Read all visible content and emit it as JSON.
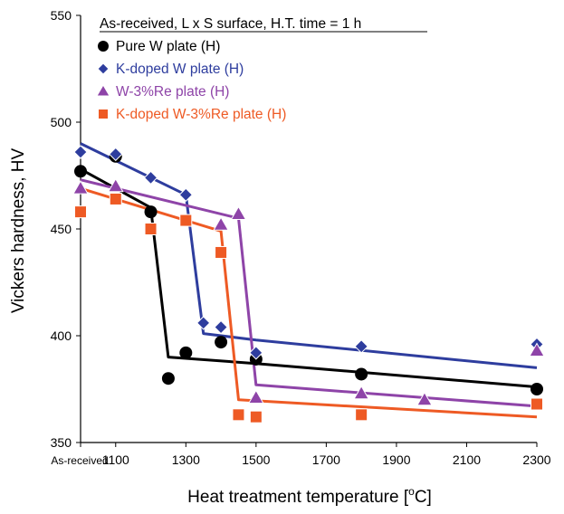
{
  "chart_data": {
    "type": "line",
    "legend_title": "As-received,  L x S surface, H.T. time = 1 h",
    "xlabel": "Heat treatment temperature [",
    "xlabel_unit_super": "o",
    "xlabel_unit_tail": "C]",
    "ylabel": "Vickers hardness, HV",
    "xlim": [
      1000,
      2300
    ],
    "ylim": [
      350,
      550
    ],
    "x_ticks": [
      {
        "value": 1000,
        "label": "As-received"
      },
      {
        "value": 1100,
        "label": "1100"
      },
      {
        "value": 1300,
        "label": "1300"
      },
      {
        "value": 1500,
        "label": "1500"
      },
      {
        "value": 1700,
        "label": "1700"
      },
      {
        "value": 1900,
        "label": "1900"
      },
      {
        "value": 2100,
        "label": "2100"
      },
      {
        "value": 2300,
        "label": "2300"
      }
    ],
    "y_ticks": [
      350,
      400,
      450,
      500,
      550
    ],
    "legend_position": "top-right",
    "series": [
      {
        "name": "Pure W plate (H)",
        "color": "#000000",
        "text_color": "#000000",
        "marker": "circle",
        "points": [
          [
            1000,
            477
          ],
          [
            1100,
            484
          ],
          [
            1200,
            458
          ],
          [
            1250,
            380
          ],
          [
            1300,
            392
          ],
          [
            1400,
            397
          ],
          [
            1500,
            389
          ],
          [
            1800,
            382
          ],
          [
            2300,
            375
          ]
        ],
        "trend": [
          [
            1000,
            478
          ],
          [
            1200,
            460
          ],
          [
            1250,
            390
          ],
          [
            1500,
            387
          ],
          [
            2300,
            376
          ]
        ]
      },
      {
        "name": "K-doped W plate (H)",
        "color": "#2E3D9E",
        "text_color": "#2E3D9E",
        "marker": "diamond",
        "points": [
          [
            1000,
            486
          ],
          [
            1100,
            485
          ],
          [
            1200,
            474
          ],
          [
            1300,
            466
          ],
          [
            1350,
            406
          ],
          [
            1400,
            404
          ],
          [
            1500,
            392
          ],
          [
            1800,
            395
          ],
          [
            2300,
            396
          ]
        ],
        "trend": [
          [
            1000,
            490
          ],
          [
            1300,
            466
          ],
          [
            1350,
            401
          ],
          [
            1500,
            398
          ],
          [
            2300,
            385
          ]
        ]
      },
      {
        "name": "W-3%Re plate (H)",
        "color": "#8E44A8",
        "text_color": "#8E44A8",
        "marker": "triangle",
        "points": [
          [
            1000,
            469
          ],
          [
            1100,
            470
          ],
          [
            1400,
            452
          ],
          [
            1450,
            457
          ],
          [
            1500,
            371
          ],
          [
            1800,
            373
          ],
          [
            1980,
            370
          ],
          [
            2300,
            393
          ]
        ],
        "trend": [
          [
            1000,
            473
          ],
          [
            1450,
            455
          ],
          [
            1500,
            377
          ],
          [
            2300,
            367
          ]
        ]
      },
      {
        "name": "K-doped W-3%Re plate (H)",
        "color": "#EE5A24",
        "text_color": "#EE5A24",
        "marker": "square",
        "points": [
          [
            1000,
            458
          ],
          [
            1100,
            464
          ],
          [
            1200,
            450
          ],
          [
            1300,
            454
          ],
          [
            1400,
            439
          ],
          [
            1450,
            363
          ],
          [
            1500,
            362
          ],
          [
            1800,
            363
          ],
          [
            2300,
            368
          ]
        ],
        "trend": [
          [
            1000,
            469
          ],
          [
            1400,
            449
          ],
          [
            1450,
            370
          ],
          [
            2300,
            362
          ]
        ]
      }
    ]
  }
}
